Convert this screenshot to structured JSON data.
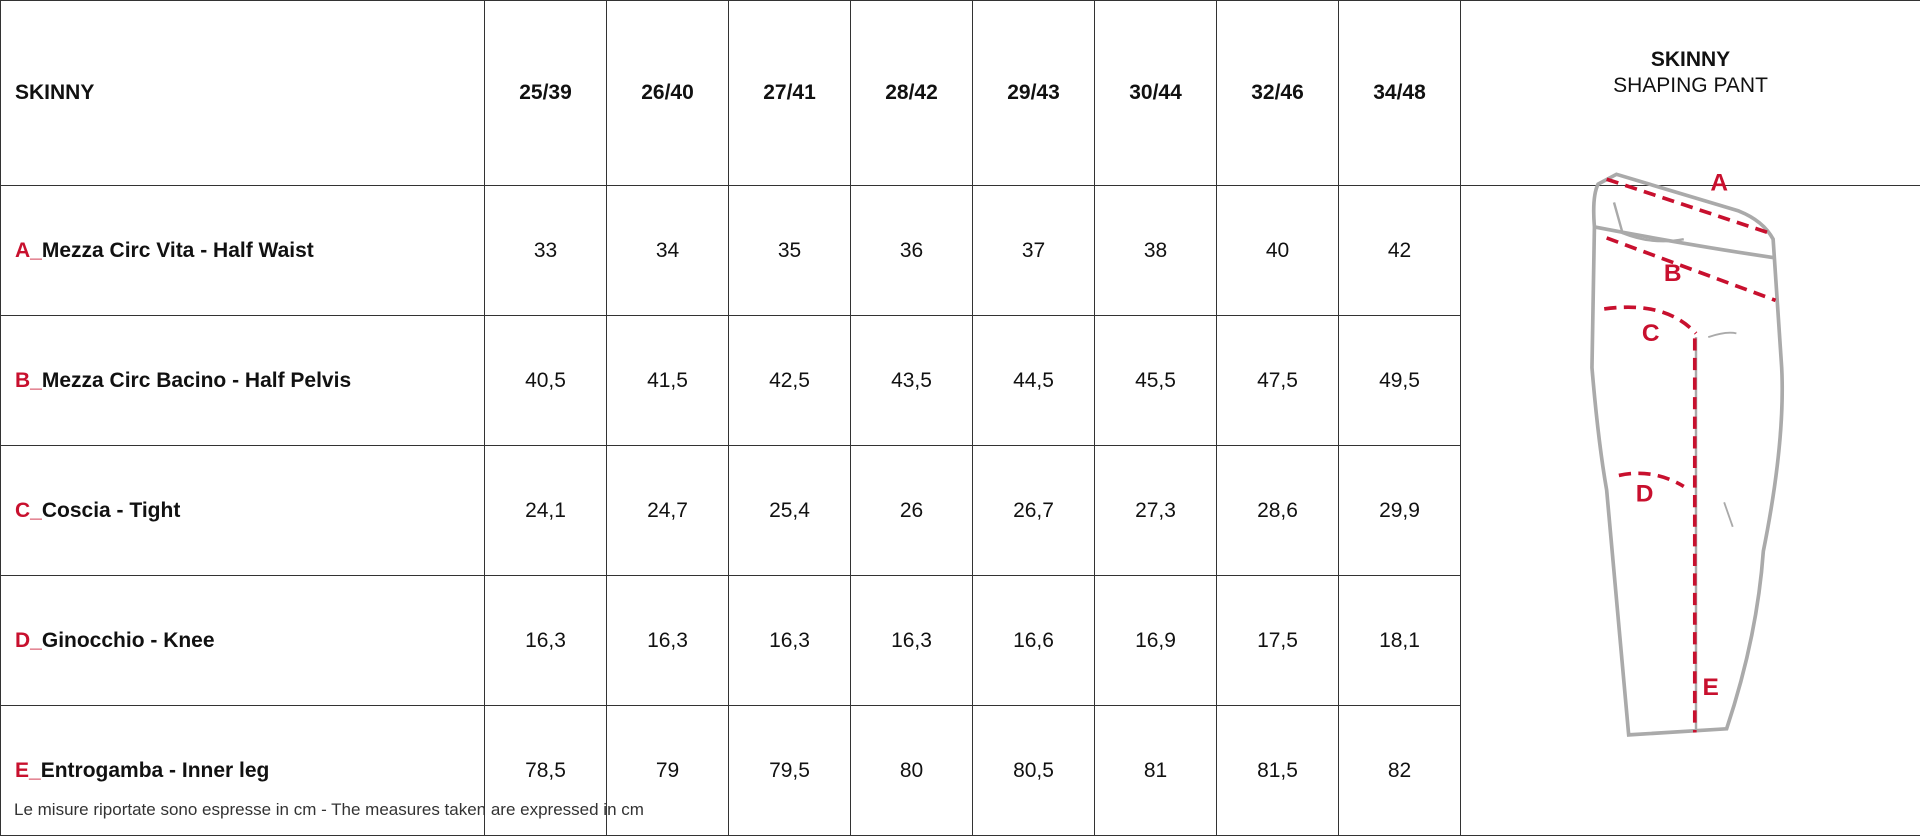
{
  "table": {
    "header": {
      "label": "SKINNY",
      "sizes": [
        "25/39",
        "26/40",
        "27/41",
        "28/42",
        "29/43",
        "30/44",
        "32/46",
        "34/48"
      ]
    },
    "rows": [
      {
        "letter": "A_",
        "label": "Mezza Circ Vita - Half Waist",
        "values": [
          "33",
          "34",
          "35",
          "36",
          "37",
          "38",
          "40",
          "42"
        ]
      },
      {
        "letter": "B_",
        "label": "Mezza Circ Bacino - Half Pelvis",
        "values": [
          "40,5",
          "41,5",
          "42,5",
          "43,5",
          "44,5",
          "45,5",
          "47,5",
          "49,5"
        ]
      },
      {
        "letter": "C_",
        "label": "Coscia - Tight",
        "values": [
          "24,1",
          "24,7",
          "25,4",
          "26",
          "26,7",
          "27,3",
          "28,6",
          "29,9"
        ]
      },
      {
        "letter": "D_",
        "label": "Ginocchio - Knee",
        "values": [
          "16,3",
          "16,3",
          "16,3",
          "16,3",
          "16,6",
          "16,9",
          "17,5",
          "18,1"
        ]
      },
      {
        "letter": "E_",
        "label": "Entrogamba - Inner leg",
        "values": [
          "78,5",
          "79",
          "79,5",
          "80",
          "80,5",
          "81",
          "81,5",
          "82"
        ]
      }
    ]
  },
  "product": {
    "title": "SKINNY",
    "subtitle": "SHAPING PANT"
  },
  "diagram": {
    "labels": [
      "A",
      "B",
      "C",
      "D",
      "E"
    ]
  },
  "footnote": "Le misure riportate sono espresse in cm - The measures taken are expressed in cm"
}
